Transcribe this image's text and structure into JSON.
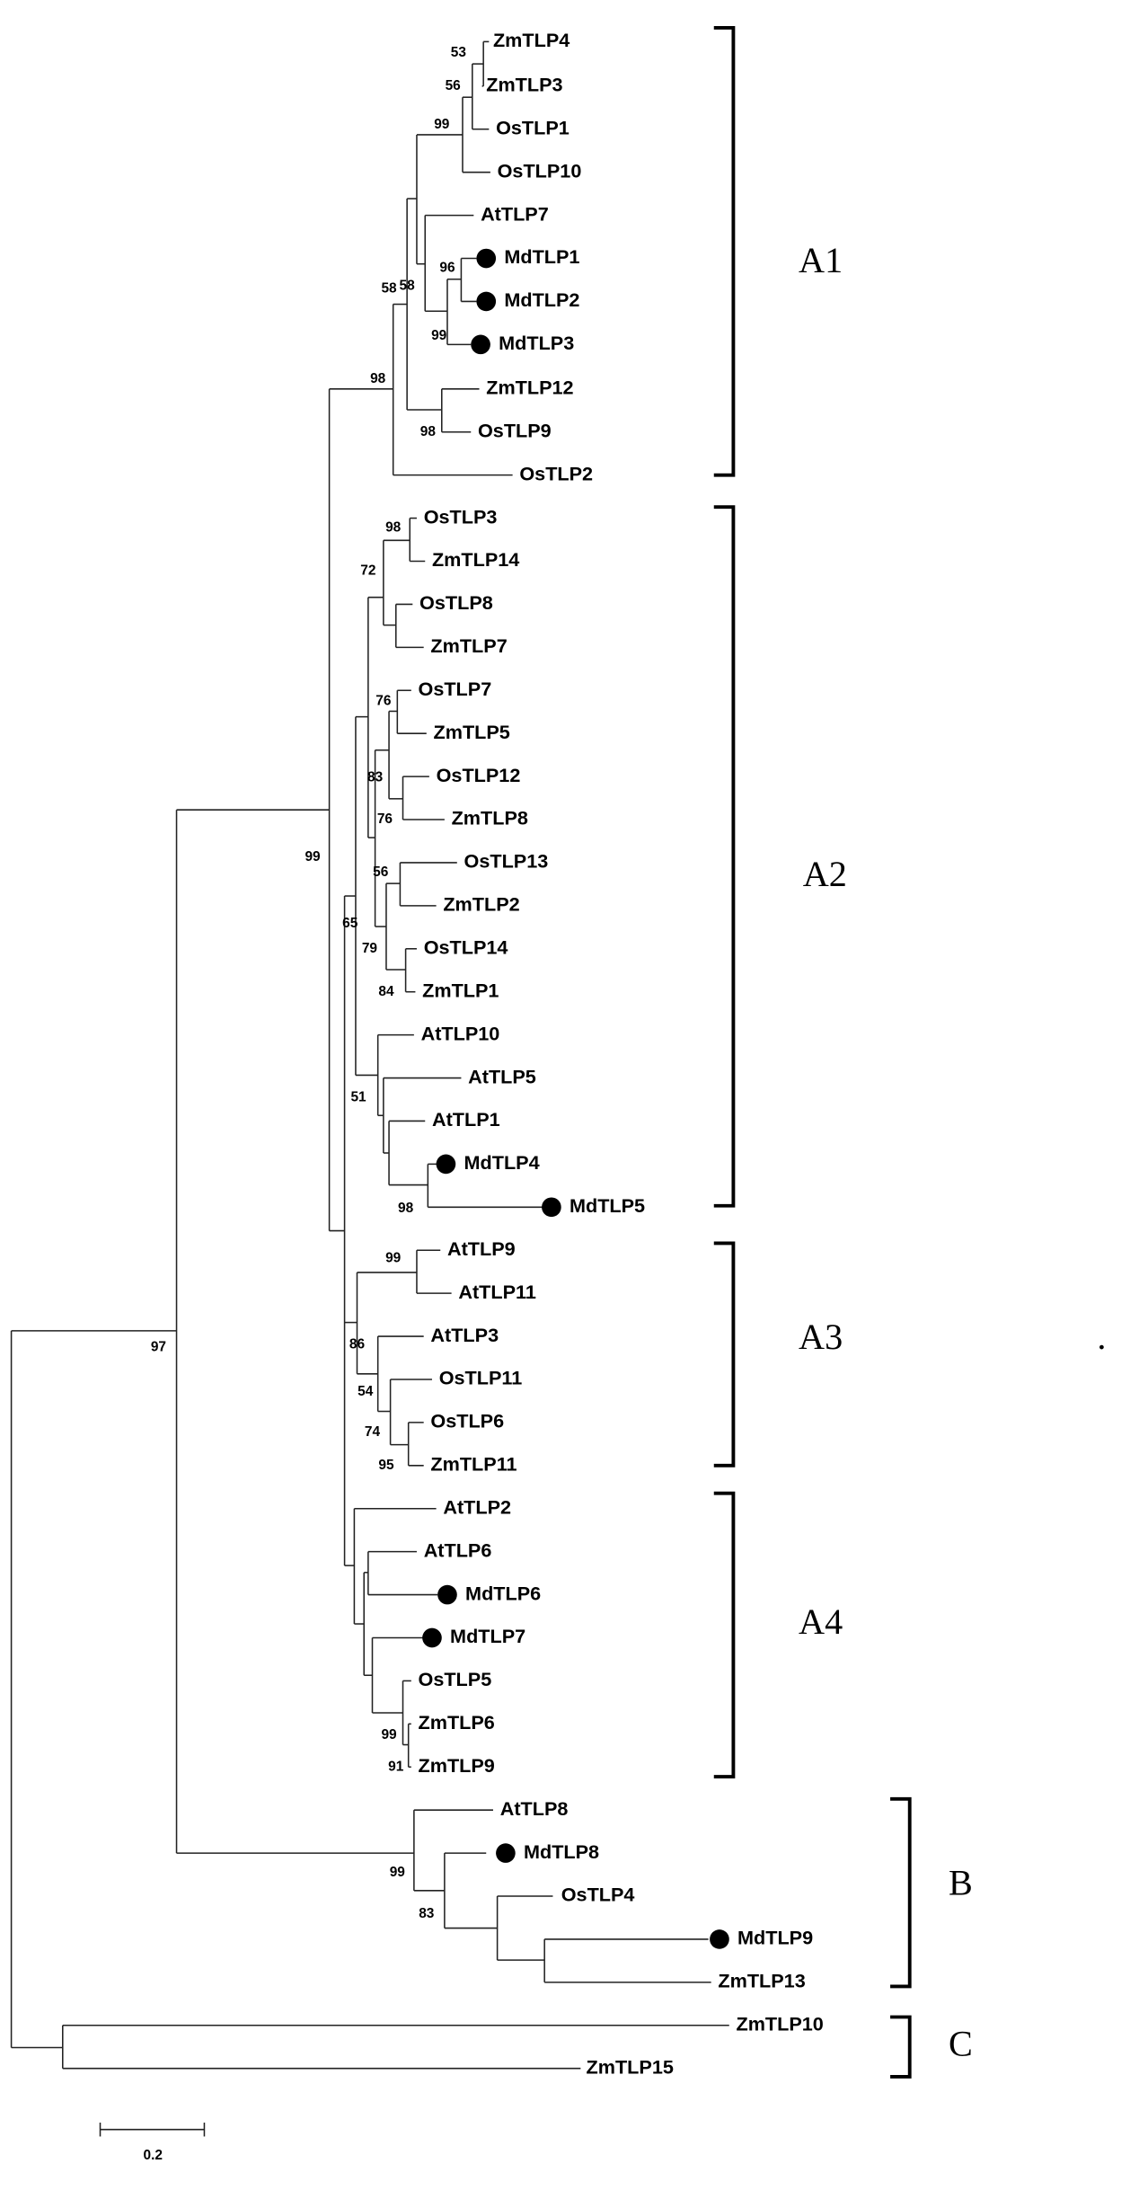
{
  "leaves": [
    "ZmTLP4",
    "ZmTLP3",
    "OsTLP1",
    "OsTLP10",
    "AtTLP7",
    "MdTLP1",
    "MdTLP2",
    "MdTLP3",
    "ZmTLP12",
    "OsTLP9",
    "OsTLP2",
    "OsTLP3",
    "ZmTLP14",
    "OsTLP8",
    "ZmTLP7",
    "OsTLP7",
    "ZmTLP5",
    "OsTLP12",
    "ZmTLP8",
    "OsTLP13",
    "ZmTLP2",
    "OsTLP14",
    "ZmTLP1",
    "AtTLP10",
    "AtTLP5",
    "AtTLP1",
    "MdTLP4",
    "MdTLP5",
    "AtTLP9",
    "AtTLP11",
    "AtTLP3",
    "OsTLP11",
    "OsTLP6",
    "ZmTLP11",
    "AtTLP2",
    "AtTLP6",
    "MdTLP6",
    "MdTLP7",
    "OsTLP5",
    "ZmTLP6",
    "ZmTLP9",
    "AtTLP8",
    "MdTLP8",
    "OsTLP4",
    "MdTLP9",
    "ZmTLP13",
    "ZmTLP10",
    "ZmTLP15"
  ],
  "support": [
    "53",
    "56",
    "99",
    "58",
    "58",
    "96",
    "99",
    "98",
    "98",
    "98",
    "72",
    "76",
    "83",
    "76",
    "56",
    "65",
    "79",
    "84",
    "99",
    "51",
    "98",
    "99",
    "86",
    "54",
    "74",
    "95",
    "99",
    "91",
    "99",
    "83",
    "97"
  ],
  "clades": [
    "A1",
    "A2",
    "A3",
    "A4",
    "B",
    "C"
  ],
  "mark": ".",
  "scale": "0.2"
}
